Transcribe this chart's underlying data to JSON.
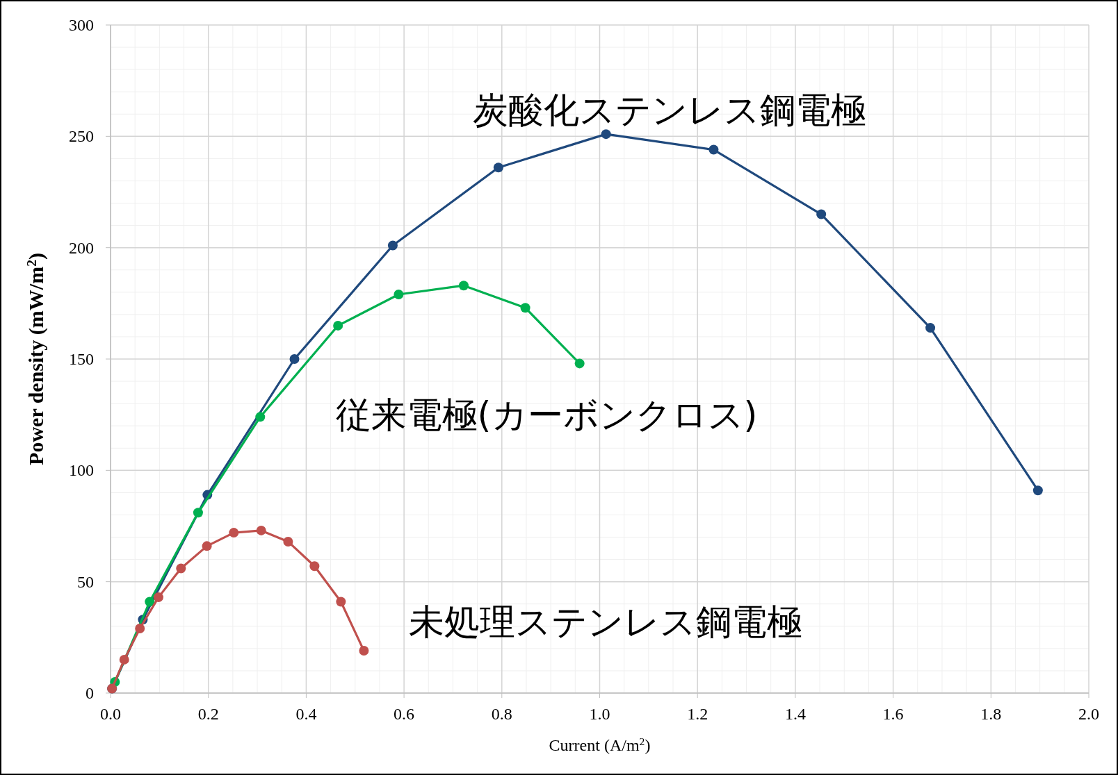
{
  "chart_data": {
    "type": "line",
    "xlabel": "Current (A/m$^{2}$)",
    "ylabel": "Power density (mW/m$^{2}$)",
    "xlim": [
      0,
      2
    ],
    "ylim": [
      0,
      300
    ],
    "xticks": [
      {
        "value": 0,
        "label": "0.0"
      },
      0.2,
      0.4,
      0.6,
      0.8,
      {
        "value": 1,
        "label": "1.0"
      },
      1.2,
      1.4,
      1.6,
      1.8,
      {
        "value": 2,
        "label": "2.0"
      }
    ],
    "yticks": [
      0,
      50,
      100,
      150,
      200,
      250,
      300
    ],
    "grid": true,
    "marker": "circle",
    "series": [
      {
        "name": "炭酸化ステンレス鋼電極",
        "color": "#1f497d",
        "x": [
          0.003,
          0.066,
          0.198,
          0.376,
          0.577,
          0.793,
          1.013,
          1.233,
          1.453,
          1.676,
          1.896
        ],
        "values": [
          2,
          33,
          89,
          150,
          201,
          236,
          251,
          244,
          215,
          164,
          91
        ]
      },
      {
        "name": "従来電極(カーボンクロス)",
        "color": "#00b050",
        "x": [
          0.009,
          0.08,
          0.179,
          0.306,
          0.465,
          0.589,
          0.722,
          0.848,
          0.959
        ],
        "values": [
          5,
          41,
          81,
          124,
          165,
          179,
          183,
          173,
          148
        ]
      },
      {
        "name": "未処理ステンレス鋼電極",
        "color": "#c0504d",
        "x": [
          0.003,
          0.028,
          0.06,
          0.098,
          0.144,
          0.197,
          0.252,
          0.308,
          0.363,
          0.417,
          0.471,
          0.518
        ],
        "values": [
          2,
          15,
          29,
          43,
          56,
          66,
          72,
          73,
          68,
          57,
          41,
          19
        ]
      }
    ]
  }
}
